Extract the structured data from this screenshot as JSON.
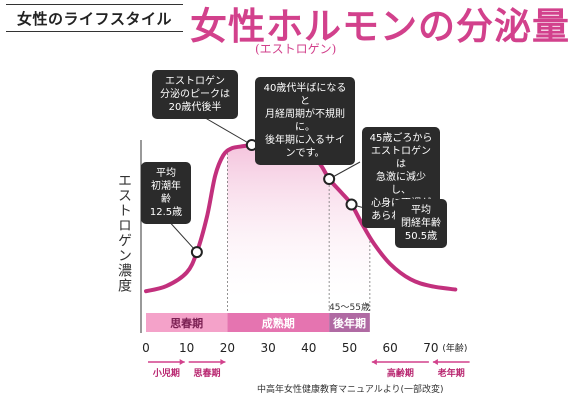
{
  "header": {
    "tagline": "女性のライフスタイル",
    "title": "女性ホルモンの分泌量",
    "title_note": "(エストロゲン)"
  },
  "colors": {
    "curve": "#c2307d",
    "fill_top": "#f2b8d6",
    "phase_puberty": "#f4a2c9",
    "phase_mature": "#e574b0",
    "phase_later": "#b06aa3",
    "callout_bg": "#2b2b2b",
    "accent": "#d2418c"
  },
  "chart_data": {
    "type": "area",
    "title": "女性ホルモンの分泌量",
    "ylabel": "エストロゲン濃度",
    "xlabel": "",
    "x_unit_label": "(年齢)",
    "xlim": [
      0,
      80
    ],
    "ylim": [
      0,
      100
    ],
    "grid": false,
    "x_ticks": [
      0,
      10,
      20,
      30,
      40,
      50,
      60,
      70
    ],
    "curve": {
      "x": [
        0,
        5,
        10,
        12.5,
        15,
        17,
        19,
        21,
        23,
        26,
        30,
        35,
        40,
        43,
        45,
        48,
        50.5,
        53,
        56,
        60,
        65,
        70,
        76
      ],
      "y": [
        4,
        7,
        15,
        27,
        48,
        72,
        84,
        88,
        89,
        90,
        91,
        90,
        86,
        78,
        70,
        62,
        55,
        44,
        32,
        20,
        11,
        7,
        5
      ]
    },
    "markers": [
      {
        "x": 12.5,
        "label": "平均\n初潮年齢\n12.5歳"
      },
      {
        "x": 26,
        "label": "エストロゲン\n分泌のピークは\n20歳代後半"
      },
      {
        "x": 40,
        "label": "40歳代半ばになると\n月経周期が不規則に。\n後年期に入るサインです。"
      },
      {
        "x": 45,
        "label": "45歳ごろから\nエストロゲンは\n急激に減少し、\n心身に不調が\nあらわれる。"
      },
      {
        "x": 50.5,
        "label": "平均\n閉経年齢\n50.5歳"
      }
    ],
    "phases": [
      {
        "label": "思春期",
        "from": 0,
        "to": 20
      },
      {
        "label": "成熟期",
        "from": 20,
        "to": 45
      },
      {
        "label": "後年期",
        "from": 45,
        "to": 55,
        "note": "45〜55歳"
      }
    ],
    "age_stages": [
      {
        "label": "小児期",
        "from": 0,
        "to": 10
      },
      {
        "label": "思春期",
        "from": 10,
        "to": 20
      },
      {
        "label": "高齢期",
        "from": 55,
        "to": 70
      },
      {
        "label": "老年期",
        "from": 70,
        "to": 80
      }
    ]
  },
  "source_note": "中高年女性健康教育マニュアルより(一部改変)"
}
